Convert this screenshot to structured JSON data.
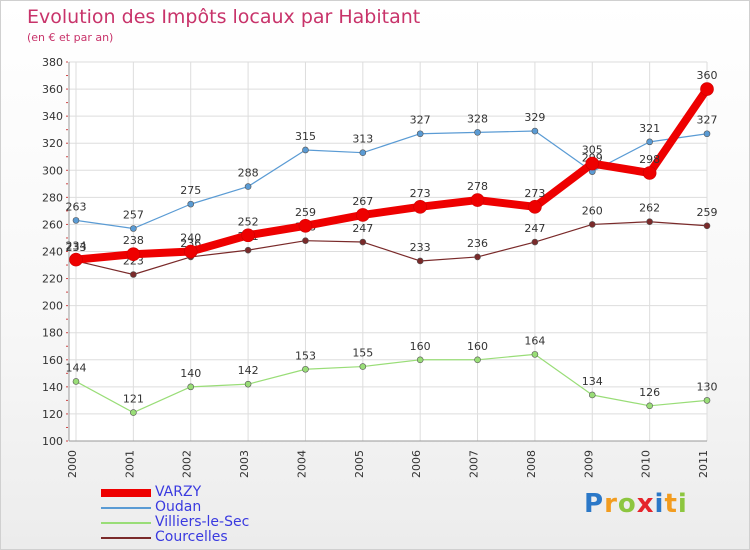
{
  "header": {
    "title": "Evolution des Impôts locaux par Habitant",
    "subtitle": "(en € et par an)"
  },
  "logo": {
    "letters": [
      "P",
      "r",
      "o",
      "x",
      "i",
      "t",
      "i"
    ],
    "colors": [
      "#2b78c8",
      "#f29c1f",
      "#8dc63f",
      "#e5242b",
      "#2b78c8",
      "#f29c1f",
      "#8dc63f"
    ]
  },
  "chart_data": {
    "type": "line",
    "x": [
      "2000",
      "2001",
      "2002",
      "2003",
      "2004",
      "2005",
      "2006",
      "2007",
      "2008",
      "2009",
      "2010",
      "2011"
    ],
    "ylim": [
      100,
      380
    ],
    "yticks": [
      100,
      120,
      140,
      160,
      180,
      200,
      220,
      240,
      260,
      280,
      300,
      320,
      340,
      360,
      380
    ],
    "grid": true,
    "legend_position": "bottom-left",
    "series": [
      {
        "name": "VARZY",
        "color": "#ee0000",
        "width": 8,
        "values": [
          234,
          238,
          240,
          252,
          259,
          267,
          273,
          278,
          273,
          305,
          298,
          360
        ]
      },
      {
        "name": "Oudan",
        "color": "#5a9bd4",
        "width": 1.2,
        "values": [
          263,
          257,
          275,
          288,
          315,
          313,
          327,
          328,
          329,
          299,
          321,
          327
        ]
      },
      {
        "name": "Villiers-le-Sec",
        "color": "#99dd77",
        "width": 1.2,
        "values": [
          144,
          121,
          140,
          142,
          153,
          155,
          160,
          160,
          164,
          134,
          126,
          130
        ]
      },
      {
        "name": "Courcelles",
        "color": "#7a2a2a",
        "width": 1.2,
        "values": [
          233,
          223,
          236,
          241,
          248,
          247,
          233,
          236,
          247,
          260,
          262,
          259
        ]
      }
    ]
  }
}
